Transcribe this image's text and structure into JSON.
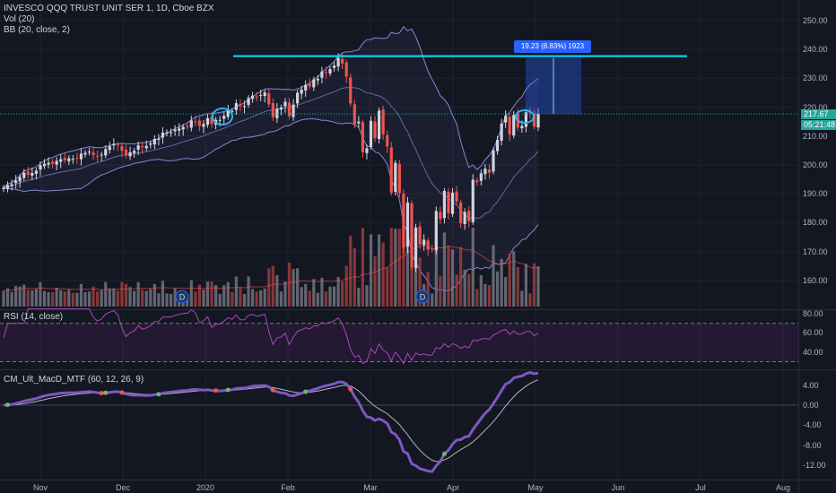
{
  "legend": {
    "symbol": "INVESCO QQQ TRUST UNIT SER 1, 1D, Cboe BZX",
    "volume": "Vol (20)",
    "bollinger": "BB (20, close, 2)",
    "rsi": "RSI (14, close)",
    "macd": "CM_Ult_MacD_MTF (60, 12, 26, 9)"
  },
  "price_axis": [
    "250.00",
    "240.00",
    "230.00",
    "220.00",
    "210.00",
    "200.00",
    "190.00",
    "180.00",
    "170.00",
    "160.00"
  ],
  "rsi_axis": [
    "80.00",
    "60.00",
    "40.00"
  ],
  "macd_axis": [
    "4.00",
    "0.00",
    "-4.00",
    "-8.00",
    "-12.00"
  ],
  "time_axis": [
    "Nov",
    "Dec",
    "2020",
    "Feb",
    "Mar",
    "Apr",
    "May",
    "Jun",
    "Jul",
    "Aug"
  ],
  "last_price": "217.67",
  "countdown": "05:21:48",
  "measure_label": "19.23 (8.83%) 1923",
  "dividend_marker": "D",
  "colors": {
    "background": "#131722",
    "up": "#d1d4dc",
    "down": "#ef5350",
    "bollinger": "#8a84d6",
    "horizontal_line": "#00e5ff",
    "rsi": "#9c27b0",
    "macd_line": "#7e57c2",
    "signal_line": "#b2b5be",
    "measure": "#2962ff"
  },
  "chart_data": {
    "type": "candlestick",
    "dates": [
      "2019-10-21",
      "2019-10-22",
      "2019-10-23",
      "2019-10-24",
      "2019-10-25",
      "2019-10-28",
      "2019-10-29",
      "2019-10-30",
      "2019-10-31",
      "2019-11-01",
      "2019-11-04",
      "2019-11-05",
      "2019-11-06",
      "2019-11-07",
      "2019-11-08",
      "2019-11-11",
      "2019-11-12",
      "2019-11-13",
      "2019-11-14",
      "2019-11-15",
      "2019-11-18",
      "2019-11-19",
      "2019-11-20",
      "2019-11-21",
      "2019-11-22",
      "2019-11-25",
      "2019-11-26",
      "2019-11-27",
      "2019-11-29",
      "2019-12-02",
      "2019-12-03",
      "2019-12-04",
      "2019-12-05",
      "2019-12-06",
      "2019-12-09",
      "2019-12-10",
      "2019-12-11",
      "2019-12-12",
      "2019-12-13",
      "2019-12-16",
      "2019-12-17",
      "2019-12-18",
      "2019-12-19",
      "2019-12-20",
      "2019-12-23",
      "2019-12-24",
      "2019-12-26",
      "2019-12-27",
      "2019-12-30",
      "2019-12-31",
      "2020-01-02",
      "2020-01-03",
      "2020-01-06",
      "2020-01-07",
      "2020-01-08",
      "2020-01-09",
      "2020-01-10",
      "2020-01-13",
      "2020-01-14",
      "2020-01-15",
      "2020-01-16",
      "2020-01-17",
      "2020-01-21",
      "2020-01-22",
      "2020-01-23",
      "2020-01-24",
      "2020-01-27",
      "2020-01-28",
      "2020-01-29",
      "2020-01-30",
      "2020-01-31",
      "2020-02-03",
      "2020-02-04",
      "2020-02-05",
      "2020-02-06",
      "2020-02-07",
      "2020-02-10",
      "2020-02-11",
      "2020-02-12",
      "2020-02-13",
      "2020-02-14",
      "2020-02-18",
      "2020-02-19",
      "2020-02-20",
      "2020-02-21",
      "2020-02-24",
      "2020-02-25",
      "2020-02-26",
      "2020-02-27",
      "2020-02-28",
      "2020-03-02",
      "2020-03-03",
      "2020-03-04",
      "2020-03-05",
      "2020-03-06",
      "2020-03-09",
      "2020-03-10",
      "2020-03-11",
      "2020-03-12",
      "2020-03-13",
      "2020-03-16",
      "2020-03-17",
      "2020-03-18",
      "2020-03-19",
      "2020-03-20",
      "2020-03-23",
      "2020-03-24",
      "2020-03-25",
      "2020-03-26",
      "2020-03-27",
      "2020-03-30",
      "2020-03-31",
      "2020-04-01",
      "2020-04-02",
      "2020-04-03",
      "2020-04-06",
      "2020-04-07",
      "2020-04-08",
      "2020-04-09",
      "2020-04-13",
      "2020-04-14",
      "2020-04-15",
      "2020-04-16",
      "2020-04-17",
      "2020-04-20",
      "2020-04-21",
      "2020-04-22",
      "2020-04-23",
      "2020-04-24",
      "2020-04-27",
      "2020-04-28",
      "2020-04-29"
    ],
    "close": [
      192.1,
      193.0,
      193.3,
      194.6,
      195.8,
      197.3,
      196.6,
      197.2,
      198.0,
      199.9,
      200.4,
      200.7,
      200.4,
      201.4,
      202.0,
      201.6,
      202.3,
      202.1,
      202.3,
      203.9,
      204.2,
      204.6,
      203.4,
      203.0,
      203.6,
      205.5,
      206.4,
      207.3,
      206.8,
      204.9,
      203.3,
      204.4,
      204.9,
      206.8,
      206.1,
      206.6,
      207.4,
      209.0,
      209.1,
      211.2,
      211.3,
      211.3,
      212.2,
      212.6,
      213.2,
      213.2,
      215.4,
      215.0,
      213.5,
      214.2,
      216.2,
      214.2,
      215.6,
      215.6,
      217.0,
      218.9,
      218.6,
      221.4,
      220.4,
      220.4,
      223.2,
      224.0,
      223.6,
      224.2,
      225.1,
      221.0,
      216.5,
      219.5,
      219.9,
      221.9,
      216.9,
      220.9,
      225.0,
      226.1,
      227.7,
      227.2,
      229.6,
      229.8,
      232.4,
      232.0,
      233.2,
      234.4,
      237.1,
      235.1,
      230.6,
      221.3,
      214.0,
      215.0,
      204.4,
      205.8,
      215.3,
      209.3,
      218.8,
      210.6,
      206.4,
      190.3,
      200.7,
      190.3,
      171.3,
      187.0,
      164.6,
      178.3,
      172.5,
      174.1,
      170.6,
      170.7,
      184.0,
      181.2,
      191.0,
      183.3,
      190.4,
      187.3,
      179.8,
      183.7,
      180.5,
      194.9,
      194.1,
      197.1,
      198.7,
      197.3,
      205.1,
      208.7,
      214.3,
      217.0,
      210.5,
      217.3,
      213.0,
      213.5,
      218.3,
      218.2,
      213.3,
      217.7
    ]
  }
}
